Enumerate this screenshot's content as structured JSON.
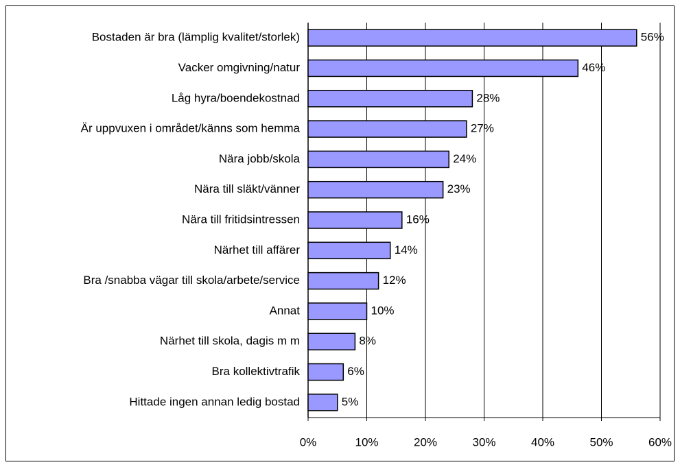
{
  "chart_data": {
    "type": "bar",
    "orientation": "horizontal",
    "categories": [
      "Bostaden är bra (lämplig kvalitet/storlek)",
      "Vacker omgivning/natur",
      "Låg hyra/boendekostnad",
      "Är uppvuxen i området/känns som hemma",
      "Nära jobb/skola",
      "Nära till släkt/vänner",
      "Nära till fritidsintressen",
      "Närhet till affärer",
      "Bra /snabba vägar till skola/arbete/service",
      "Annat",
      "Närhet till skola, dagis m m",
      "Bra kollektivtrafik",
      "Hittade ingen annan ledig bostad"
    ],
    "values": [
      56,
      46,
      28,
      27,
      24,
      23,
      16,
      14,
      12,
      10,
      8,
      6,
      5
    ],
    "value_labels": [
      "56%",
      "46%",
      "28%",
      "27%",
      "24%",
      "23%",
      "16%",
      "14%",
      "12%",
      "10%",
      "8%",
      "6%",
      "5%"
    ],
    "color": "#9999ff",
    "xlim": [
      0,
      60
    ],
    "xticks": [
      {
        "value": 0,
        "label": "0%"
      },
      {
        "value": 10,
        "label": "10%"
      },
      {
        "value": 20,
        "label": "20%"
      },
      {
        "value": 30,
        "label": "30%"
      },
      {
        "value": 40,
        "label": "40%"
      },
      {
        "value": 50,
        "label": "50%"
      },
      {
        "value": 60,
        "label": "60%"
      }
    ],
    "grid": true
  }
}
